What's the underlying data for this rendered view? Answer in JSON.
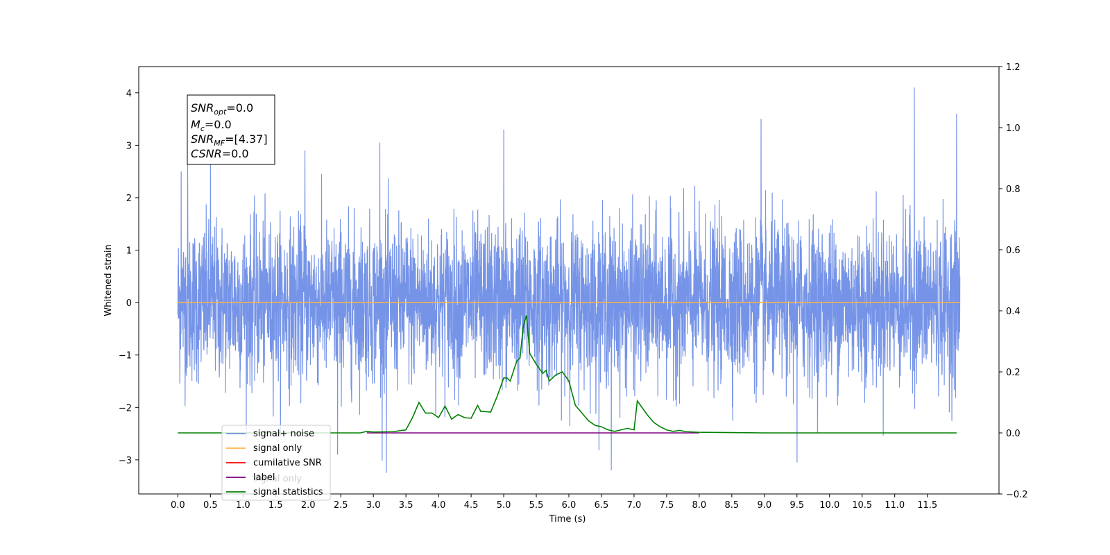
{
  "chart_data": {
    "type": "line",
    "xlabel": "Time (s)",
    "ylabel": "Whitened strain",
    "xlim": [
      -0.6,
      12.6
    ],
    "ylim": [
      -3.65,
      4.5
    ],
    "ylim_right": [
      -0.2,
      1.2
    ],
    "grid": false,
    "legend_position": "lower-left",
    "x_ticks": [
      "0.0",
      "0.5",
      "1.0",
      "1.5",
      "2.0",
      "2.5",
      "3.0",
      "3.5",
      "4.0",
      "4.5",
      "5.0",
      "5.5",
      "6.0",
      "6.5",
      "7.0",
      "7.5",
      "8.0",
      "8.5",
      "9.0",
      "9.5",
      "10.0",
      "10.5",
      "11.0",
      "11.5"
    ],
    "y_ticks_left": [
      "4",
      "3",
      "2",
      "1",
      "0",
      "−1",
      "−2",
      "−3"
    ],
    "y_ticks_right": [
      "1.2",
      "1.0",
      "0.8",
      "0.6",
      "0.4",
      "0.2",
      "0.0",
      "−0.2"
    ],
    "series": [
      {
        "name": "signal+ noise",
        "color": "#6f8ee6",
        "axis": "left",
        "kind": "noise",
        "x_range": [
          0.0,
          12.0
        ],
        "sigma": 0.75,
        "envelope_max": 4.1,
        "envelope_min": -3.3,
        "peaks": [
          [
            0.05,
            2.5
          ],
          [
            0.15,
            2.8
          ],
          [
            0.5,
            2.7
          ],
          [
            1.95,
            2.9
          ],
          [
            3.1,
            3.05
          ],
          [
            5.0,
            3.3
          ],
          [
            8.95,
            3.5
          ],
          [
            11.3,
            4.1
          ],
          [
            11.95,
            3.6
          ],
          [
            6.65,
            -3.2
          ],
          [
            3.2,
            -3.25
          ],
          [
            9.5,
            -3.05
          ],
          [
            2.45,
            -2.9
          ]
        ]
      },
      {
        "name": "signal only",
        "color": "#ffb347",
        "axis": "left",
        "x": [
          0.0,
          12.0
        ],
        "y": [
          0.0,
          0.0
        ]
      },
      {
        "name": "cumilative SNR",
        "color": "#ff0000",
        "axis": "right",
        "x": [],
        "y": []
      },
      {
        "name": "label",
        "color": "#800080",
        "axis": "right",
        "x": [
          2.9,
          8.0
        ],
        "y": [
          0.0,
          0.0
        ]
      },
      {
        "name": "signal statistics",
        "color": "#008000",
        "axis": "right",
        "x": [
          0.0,
          2.8,
          2.9,
          3.0,
          3.3,
          3.5,
          3.6,
          3.7,
          3.8,
          3.9,
          4.0,
          4.1,
          4.2,
          4.3,
          4.4,
          4.5,
          4.6,
          4.65,
          4.7,
          4.8,
          4.9,
          5.0,
          5.05,
          5.1,
          5.2,
          5.25,
          5.3,
          5.35,
          5.4,
          5.5,
          5.6,
          5.65,
          5.7,
          5.8,
          5.9,
          6.0,
          6.1,
          6.2,
          6.3,
          6.4,
          6.5,
          6.6,
          6.7,
          6.8,
          6.9,
          7.0,
          7.05,
          7.1,
          7.2,
          7.3,
          7.4,
          7.5,
          7.6,
          7.7,
          7.8,
          7.9,
          8.0,
          8.5,
          9.0,
          11.95
        ],
        "y": [
          0.0,
          0.0,
          0.005,
          0.003,
          0.004,
          0.01,
          0.05,
          0.1,
          0.065,
          0.065,
          0.05,
          0.088,
          0.045,
          0.06,
          0.05,
          0.048,
          0.09,
          0.07,
          0.07,
          0.068,
          0.12,
          0.18,
          0.18,
          0.17,
          0.235,
          0.245,
          0.35,
          0.385,
          0.26,
          0.225,
          0.195,
          0.205,
          0.17,
          0.19,
          0.2,
          0.17,
          0.09,
          0.065,
          0.04,
          0.025,
          0.02,
          0.01,
          0.005,
          0.01,
          0.015,
          0.01,
          0.105,
          0.09,
          0.06,
          0.035,
          0.02,
          0.01,
          0.005,
          0.008,
          0.004,
          0.003,
          0.002,
          0.001,
          0.0,
          0.0
        ]
      }
    ],
    "annotations": {
      "snr_opt": {
        "label": "SNR",
        "sub": "opt",
        "value": "=0.0"
      },
      "mc": {
        "label": "M",
        "sub": "c",
        "value": "=0.0"
      },
      "snr_mf": {
        "label": "SNR",
        "sub": "MF",
        "value": "=[4.37]"
      },
      "csnr": {
        "label": "CSNR",
        "value": "=0.0"
      }
    },
    "legend_ghost_text": "signal only"
  }
}
